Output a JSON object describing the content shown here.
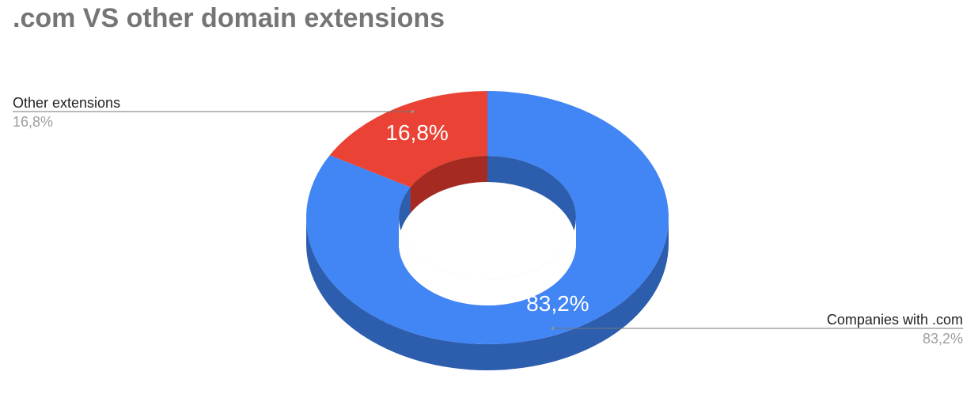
{
  "chart_data": {
    "type": "pie",
    "title": ".com VS other domain extensions",
    "donut": true,
    "three_d": true,
    "slices": [
      {
        "name": "Companies with .com",
        "value": 83.2,
        "label": "83,2%",
        "color": "#4285f4",
        "side_color": "#2d5eae"
      },
      {
        "name": "Other extensions",
        "value": 16.8,
        "label": "16,8%",
        "color": "#ea4335",
        "side_color": "#a52a22"
      }
    ]
  }
}
